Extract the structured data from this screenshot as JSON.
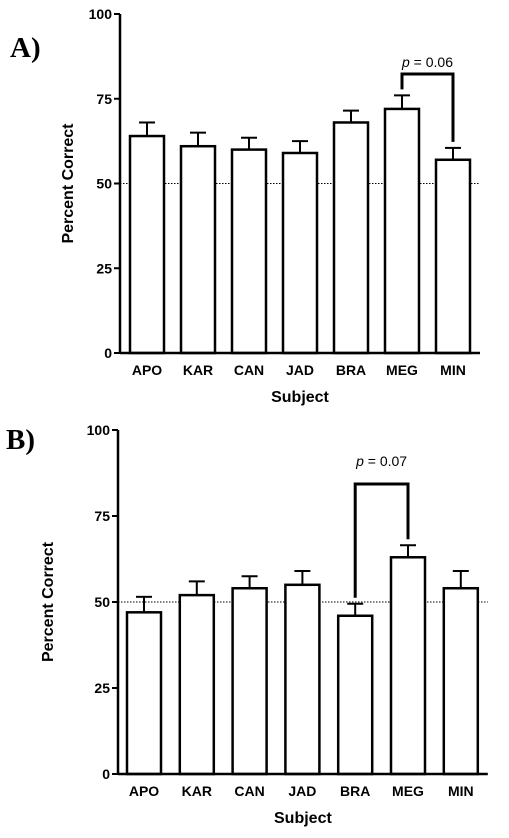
{
  "chart_data": [
    {
      "type": "bar",
      "panel_label": "A)",
      "categories": [
        "APO",
        "KAR",
        "CAN",
        "JAD",
        "BRA",
        "MEG",
        "MIN"
      ],
      "values": [
        64,
        61,
        60,
        59,
        68,
        72,
        57
      ],
      "error": [
        4,
        4,
        3.5,
        3.5,
        3.5,
        4,
        3.5
      ],
      "xlabel": "Subject",
      "ylabel": "Percent Correct",
      "ylim": [
        0,
        100
      ],
      "yticks": [
        "0",
        "25",
        "50",
        "75",
        "100"
      ],
      "reference_line": 50,
      "annotation": {
        "p_symbol": "p",
        "rest": " = 0.06",
        "between": [
          "MEG",
          "MIN"
        ]
      }
    },
    {
      "type": "bar",
      "panel_label": "B)",
      "categories": [
        "APO",
        "KAR",
        "CAN",
        "JAD",
        "BRA",
        "MEG",
        "MIN"
      ],
      "values": [
        47,
        52,
        54,
        55,
        46,
        63,
        54
      ],
      "error": [
        4.5,
        4,
        3.5,
        4,
        3.5,
        3.5,
        5
      ],
      "xlabel": "Subject",
      "ylabel": "Percent Correct",
      "ylim": [
        0,
        100
      ],
      "yticks": [
        "0",
        "25",
        "50",
        "75",
        "100"
      ],
      "reference_line": 50,
      "annotation": {
        "p_symbol": "p",
        "rest": " = 0.07",
        "between": [
          "BRA",
          "MEG"
        ]
      }
    }
  ]
}
